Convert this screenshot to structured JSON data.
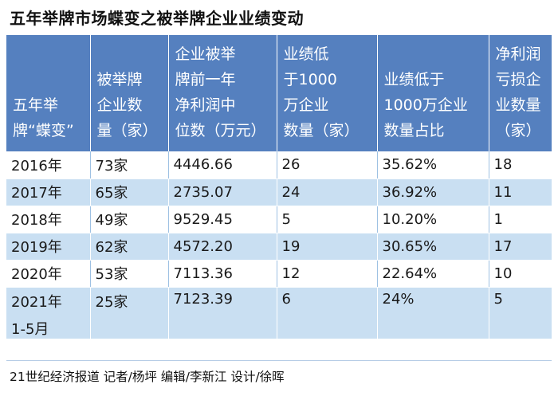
{
  "title": "五年举牌市场蝶变之被举牌企业业绩变动",
  "table": {
    "headers": [
      "五年举\n牌“蝶变”",
      "被举牌\n企业数\n量（家）",
      "企业被举\n牌前一年\n净利润中\n位数（万元）",
      "业绩低\n于1000\n万企业\n数量（家）",
      "业绩低于\n1000万企业\n数量占比",
      "净利润\n亏损企\n业数量\n（家）"
    ],
    "rows": [
      {
        "year": "2016年",
        "count": "73家",
        "median": "4446.66",
        "low_count": "26",
        "low_ratio": "35.62%",
        "loss": "18"
      },
      {
        "year": "2017年",
        "count": "65家",
        "median": "2735.07",
        "low_count": "24",
        "low_ratio": "36.92%",
        "loss": "11"
      },
      {
        "year": "2018年",
        "count": "49家",
        "median": "9529.45",
        "low_count": "5",
        "low_ratio": "10.20%",
        "loss": "1"
      },
      {
        "year": "2019年",
        "count": "62家",
        "median": "4572.20",
        "low_count": "19",
        "low_ratio": "30.65%",
        "loss": "17"
      },
      {
        "year": "2020年",
        "count": "53家",
        "median": "7113.36",
        "low_count": "12",
        "low_ratio": "22.64%",
        "loss": "10"
      },
      {
        "year": "2021年",
        "year_line2": "1-5月",
        "count": "25家",
        "median": "7123.39",
        "low_count": "6",
        "low_ratio": "24%",
        "loss": "5"
      }
    ]
  },
  "credit": "21世纪经济报道 记者/杨坪 编辑/李新江 设计/徐晖",
  "colors": {
    "header": "#5580bf",
    "stripe": "#c9dff2"
  }
}
